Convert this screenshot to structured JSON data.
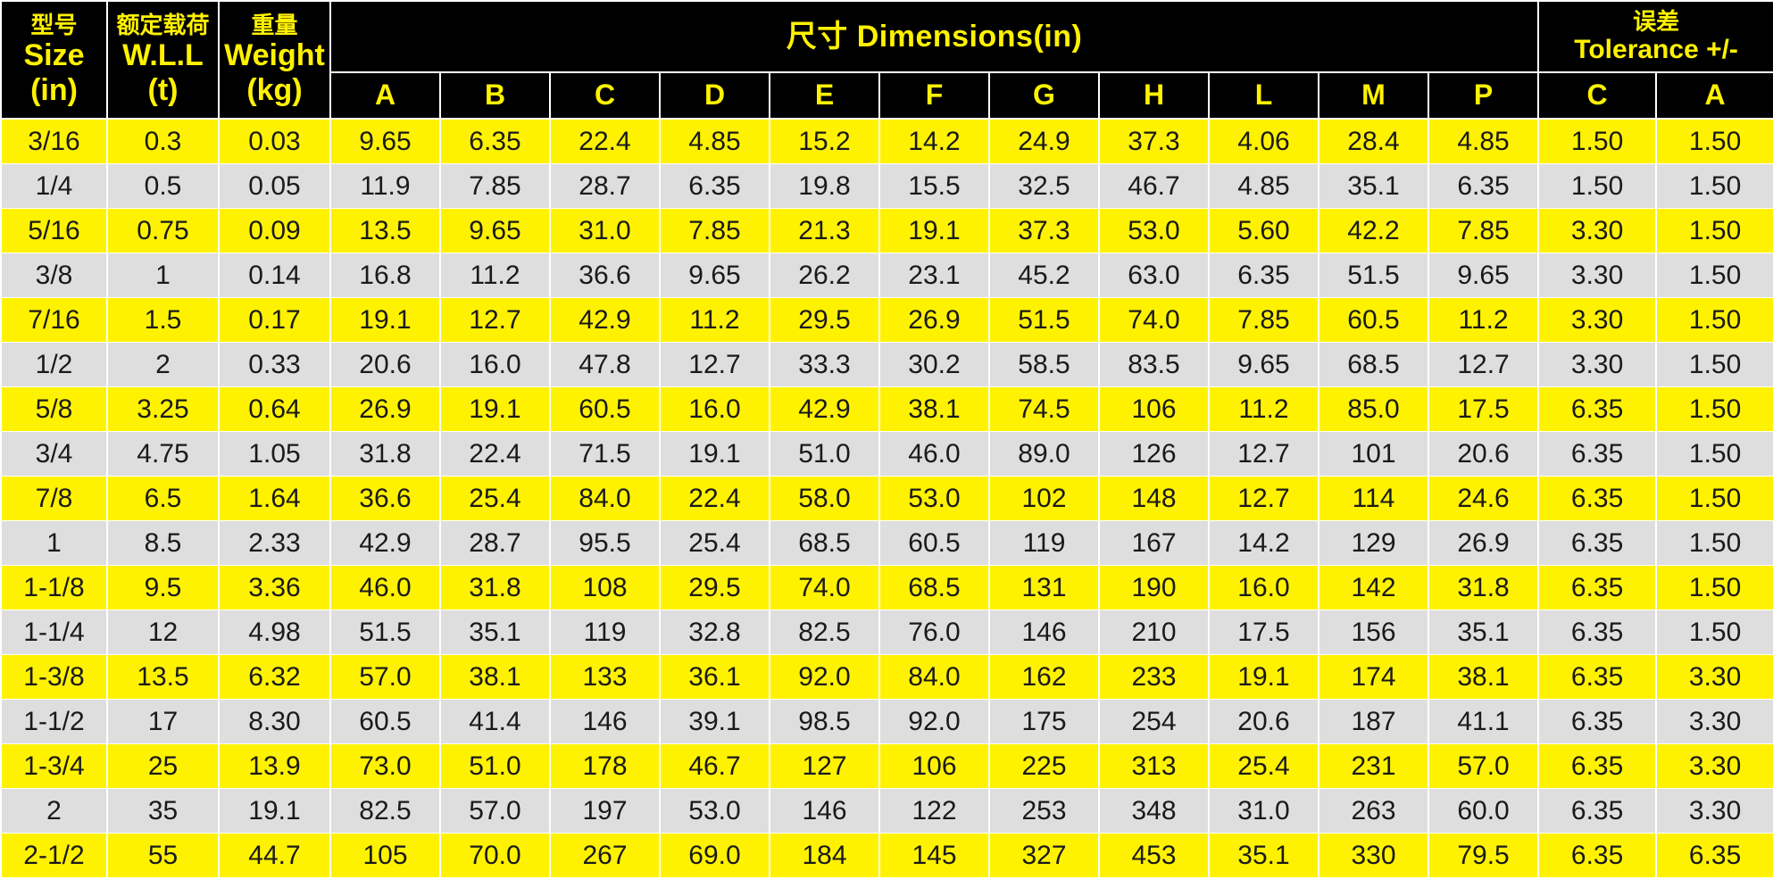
{
  "header": {
    "size": {
      "cn": "型号",
      "line1": "Size",
      "line2": "(in)"
    },
    "wll": {
      "cn": "额定载荷",
      "line1": "W.L.L",
      "line2": "(t)"
    },
    "weight": {
      "cn": "重量",
      "line1": "Weight",
      "line2": "(kg)"
    },
    "dimensions_title": "尺寸  Dimensions(in)",
    "tolerance": {
      "cn": "误差",
      "line1": "Tolerance +/-"
    },
    "dimension_columns": [
      "A",
      "B",
      "C",
      "D",
      "E",
      "F",
      "G",
      "H",
      "L",
      "M",
      "P"
    ],
    "tolerance_columns": [
      "C",
      "A"
    ]
  },
  "colors": {
    "header_bg": "#000000",
    "header_text": "#fff200",
    "row_yellow": "#fff200",
    "row_gray": "#dedede"
  },
  "rows": [
    [
      "3/16",
      "0.3",
      "0.03",
      "9.65",
      "6.35",
      "22.4",
      "4.85",
      "15.2",
      "14.2",
      "24.9",
      "37.3",
      "4.06",
      "28.4",
      "4.85",
      "1.50",
      "1.50"
    ],
    [
      "1/4",
      "0.5",
      "0.05",
      "11.9",
      "7.85",
      "28.7",
      "6.35",
      "19.8",
      "15.5",
      "32.5",
      "46.7",
      "4.85",
      "35.1",
      "6.35",
      "1.50",
      "1.50"
    ],
    [
      "5/16",
      "0.75",
      "0.09",
      "13.5",
      "9.65",
      "31.0",
      "7.85",
      "21.3",
      "19.1",
      "37.3",
      "53.0",
      "5.60",
      "42.2",
      "7.85",
      "3.30",
      "1.50"
    ],
    [
      "3/8",
      "1",
      "0.14",
      "16.8",
      "11.2",
      "36.6",
      "9.65",
      "26.2",
      "23.1",
      "45.2",
      "63.0",
      "6.35",
      "51.5",
      "9.65",
      "3.30",
      "1.50"
    ],
    [
      "7/16",
      "1.5",
      "0.17",
      "19.1",
      "12.7",
      "42.9",
      "11.2",
      "29.5",
      "26.9",
      "51.5",
      "74.0",
      "7.85",
      "60.5",
      "11.2",
      "3.30",
      "1.50"
    ],
    [
      "1/2",
      "2",
      "0.33",
      "20.6",
      "16.0",
      "47.8",
      "12.7",
      "33.3",
      "30.2",
      "58.5",
      "83.5",
      "9.65",
      "68.5",
      "12.7",
      "3.30",
      "1.50"
    ],
    [
      "5/8",
      "3.25",
      "0.64",
      "26.9",
      "19.1",
      "60.5",
      "16.0",
      "42.9",
      "38.1",
      "74.5",
      "106",
      "11.2",
      "85.0",
      "17.5",
      "6.35",
      "1.50"
    ],
    [
      "3/4",
      "4.75",
      "1.05",
      "31.8",
      "22.4",
      "71.5",
      "19.1",
      "51.0",
      "46.0",
      "89.0",
      "126",
      "12.7",
      "101",
      "20.6",
      "6.35",
      "1.50"
    ],
    [
      "7/8",
      "6.5",
      "1.64",
      "36.6",
      "25.4",
      "84.0",
      "22.4",
      "58.0",
      "53.0",
      "102",
      "148",
      "12.7",
      "114",
      "24.6",
      "6.35",
      "1.50"
    ],
    [
      "1",
      "8.5",
      "2.33",
      "42.9",
      "28.7",
      "95.5",
      "25.4",
      "68.5",
      "60.5",
      "119",
      "167",
      "14.2",
      "129",
      "26.9",
      "6.35",
      "1.50"
    ],
    [
      "1-1/8",
      "9.5",
      "3.36",
      "46.0",
      "31.8",
      "108",
      "29.5",
      "74.0",
      "68.5",
      "131",
      "190",
      "16.0",
      "142",
      "31.8",
      "6.35",
      "1.50"
    ],
    [
      "1-1/4",
      "12",
      "4.98",
      "51.5",
      "35.1",
      "119",
      "32.8",
      "82.5",
      "76.0",
      "146",
      "210",
      "17.5",
      "156",
      "35.1",
      "6.35",
      "1.50"
    ],
    [
      "1-3/8",
      "13.5",
      "6.32",
      "57.0",
      "38.1",
      "133",
      "36.1",
      "92.0",
      "84.0",
      "162",
      "233",
      "19.1",
      "174",
      "38.1",
      "6.35",
      "3.30"
    ],
    [
      "1-1/2",
      "17",
      "8.30",
      "60.5",
      "41.4",
      "146",
      "39.1",
      "98.5",
      "92.0",
      "175",
      "254",
      "20.6",
      "187",
      "41.1",
      "6.35",
      "3.30"
    ],
    [
      "1-3/4",
      "25",
      "13.9",
      "73.0",
      "51.0",
      "178",
      "46.7",
      "127",
      "106",
      "225",
      "313",
      "25.4",
      "231",
      "57.0",
      "6.35",
      "3.30"
    ],
    [
      "2",
      "35",
      "19.1",
      "82.5",
      "57.0",
      "197",
      "53.0",
      "146",
      "122",
      "253",
      "348",
      "31.0",
      "263",
      "60.0",
      "6.35",
      "3.30"
    ],
    [
      "2-1/2",
      "55",
      "44.7",
      "105",
      "70.0",
      "267",
      "69.0",
      "184",
      "145",
      "327",
      "453",
      "35.1",
      "330",
      "79.5",
      "6.35",
      "6.35"
    ]
  ]
}
